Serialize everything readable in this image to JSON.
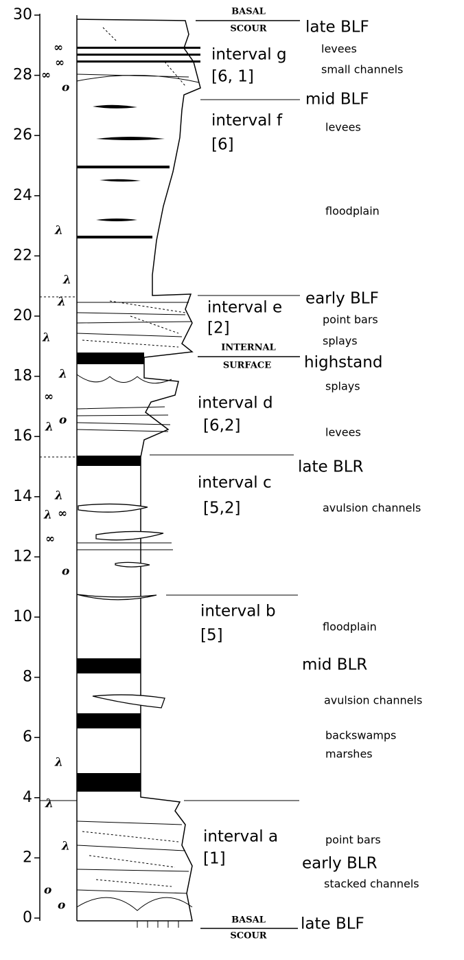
{
  "depth_axis": {
    "ylim": [
      0,
      30
    ],
    "ticks": [
      0,
      2,
      4,
      6,
      8,
      10,
      12,
      14,
      16,
      18,
      20,
      22,
      24,
      26,
      28,
      30
    ]
  },
  "surfaces": {
    "top": [
      "BASAL",
      "SCOUR"
    ],
    "internal": [
      "INTERNAL",
      "SURFACE"
    ],
    "bottom": [
      "BASAL",
      "SCOUR"
    ]
  },
  "phases": [
    "late BLF",
    "mid BLF",
    "early BLF",
    "highstand",
    "late BLR",
    "mid BLR",
    "early BLR",
    "late BLF"
  ],
  "intervals": [
    {
      "name": "interval g",
      "code": "[6, 1]"
    },
    {
      "name": "interval f",
      "code": "[6]"
    },
    {
      "name": "interval e",
      "code": "[2]"
    },
    {
      "name": "interval d",
      "code": "[6,2]"
    },
    {
      "name": "interval c",
      "code": "[5,2]"
    },
    {
      "name": "interval b",
      "code": "[5]"
    },
    {
      "name": "interval a",
      "code": "[1]"
    }
  ],
  "environments": [
    "levees",
    "small channels",
    "levees",
    "floodplain",
    "point bars",
    "splays",
    "splays",
    "levees",
    "avulsion channels",
    "floodplain",
    "avulsion channels",
    "backswamps",
    "marshes",
    "point bars",
    "stacked channels"
  ],
  "symbols": [
    "∞",
    "∞",
    "∞",
    "o",
    "λ",
    "λ",
    "λ",
    "λ",
    "λ",
    "∞",
    "λ",
    "o",
    "λ",
    "λ",
    "∞",
    "∞",
    "o",
    "λ",
    "λ",
    "λ",
    "o",
    "o"
  ]
}
